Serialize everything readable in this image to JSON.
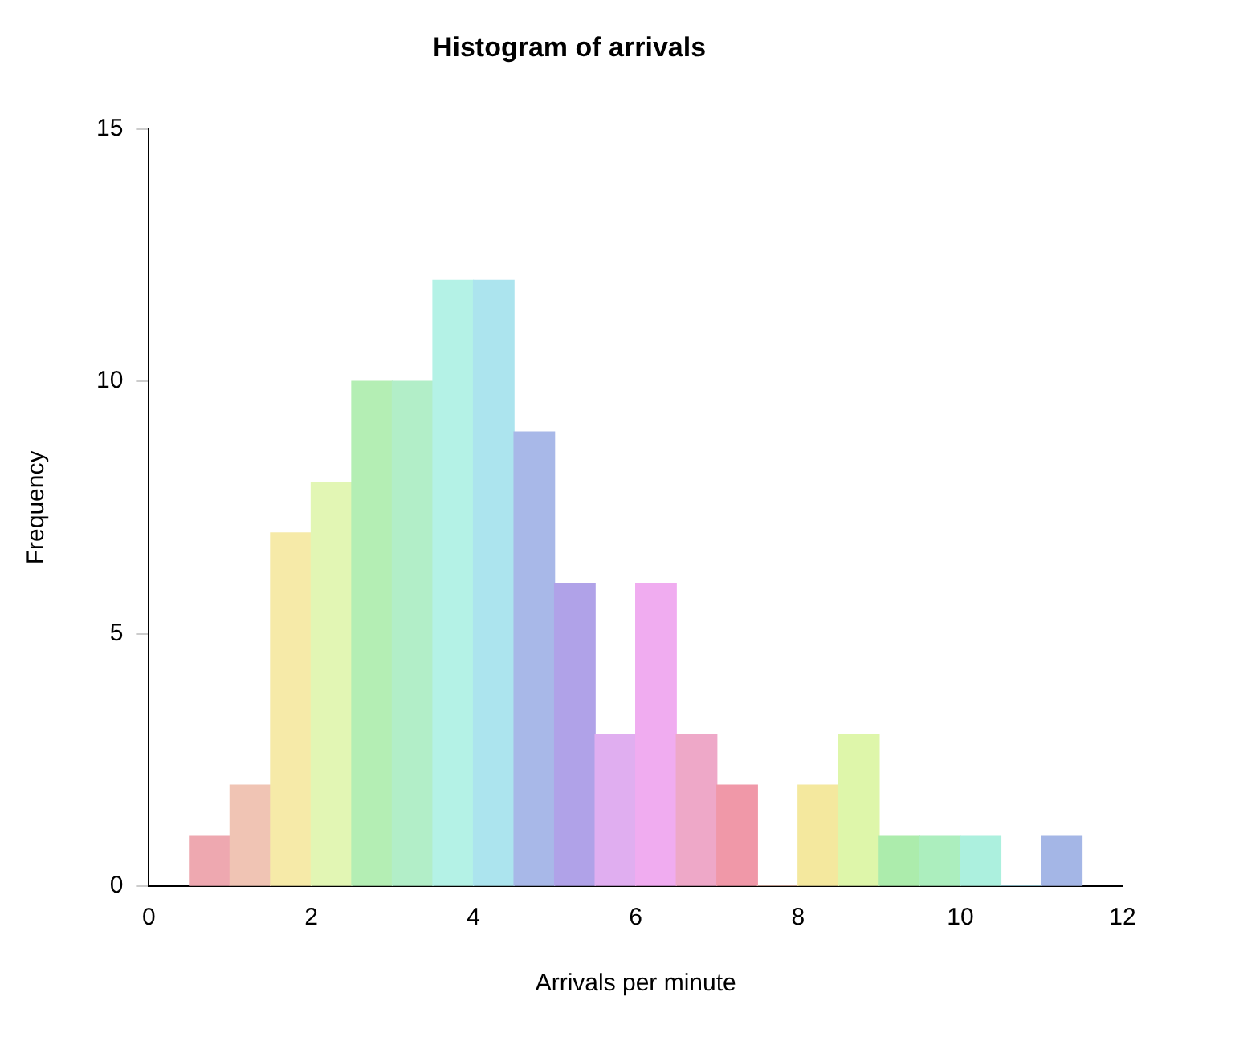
{
  "chart_data": {
    "type": "histogram",
    "title": "Histogram of arrivals",
    "xlabel": "Arrivals per minute",
    "ylabel": "Frequency",
    "bins": [
      0.5,
      1,
      1.5,
      2,
      2.5,
      3,
      3.5,
      4,
      4.5,
      5,
      5.5,
      6,
      6.5,
      7,
      7.5,
      8,
      8.5,
      9,
      9.5,
      10,
      10.5,
      11,
      11.5
    ],
    "values": [
      1,
      2,
      7,
      8,
      10,
      10,
      12,
      12,
      9,
      6,
      3,
      6,
      3,
      2,
      0,
      2,
      3,
      1,
      1,
      1,
      0,
      1
    ],
    "colors": [
      "#eea8b0",
      "#f0c4b4",
      "#f6eaa8",
      "#e2f6b4",
      "#b4eeb4",
      "#b2eec8",
      "#b4f2e6",
      "#ace4ee",
      "#a8b8e8",
      "#b0a2e8",
      "#e0aef0",
      "#f0acf0",
      "#eea8c8",
      "#f098a8",
      "#f2c8b8",
      "#f4e89e",
      "#def6aa",
      "#acecac",
      "#aceebe",
      "#acf0de",
      "#aee2ee",
      "#a4b6e6"
    ],
    "xlim": [
      0,
      12
    ],
    "xticks": [
      0,
      2,
      4,
      6,
      8,
      10,
      12
    ],
    "ylim": [
      0,
      15
    ],
    "yticks": [
      0,
      5,
      10,
      15
    ],
    "grid": false,
    "legend": false
  }
}
